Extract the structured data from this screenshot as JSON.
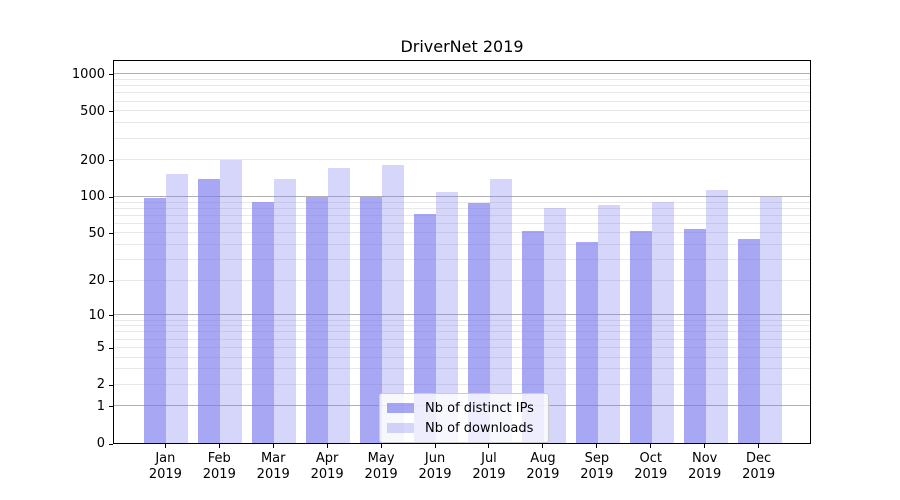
{
  "title": "DriverNet 2019",
  "legend": {
    "items": [
      {
        "label": "Nb of distinct IPs",
        "series": "ips"
      },
      {
        "label": "Nb of downloads",
        "series": "downloads"
      }
    ],
    "position": "lower center"
  },
  "colors": {
    "ips": "rgba(120,120,238,0.65)",
    "downloads": "rgba(120,120,238,0.30)",
    "grid_major": "#b0b0b0",
    "grid_minor": "#e8e8e8",
    "spine": "#000000",
    "text": "#000000",
    "legend_border": "#cccccc",
    "legend_bg": "rgba(255,255,255,0.8)"
  },
  "chart_data": {
    "type": "bar",
    "title": "DriverNet 2019",
    "categories": [
      {
        "month": "Jan",
        "year": "2019"
      },
      {
        "month": "Feb",
        "year": "2019"
      },
      {
        "month": "Mar",
        "year": "2019"
      },
      {
        "month": "Apr",
        "year": "2019"
      },
      {
        "month": "May",
        "year": "2019"
      },
      {
        "month": "Jun",
        "year": "2019"
      },
      {
        "month": "Jul",
        "year": "2019"
      },
      {
        "month": "Aug",
        "year": "2019"
      },
      {
        "month": "Sep",
        "year": "2019"
      },
      {
        "month": "Oct",
        "year": "2019"
      },
      {
        "month": "Nov",
        "year": "2019"
      },
      {
        "month": "Dec",
        "year": "2019"
      }
    ],
    "series": [
      {
        "name": "Nb of distinct IPs",
        "key": "ips",
        "values": [
          97,
          140,
          90,
          100,
          100,
          72,
          89,
          52,
          42,
          52,
          54,
          45
        ]
      },
      {
        "name": "Nb of downloads",
        "key": "downloads",
        "values": [
          152,
          200,
          140,
          170,
          180,
          108,
          139,
          80,
          85,
          91,
          113,
          100
        ]
      }
    ],
    "xlabel": "",
    "ylabel": "",
    "yscale": "symlog (position = log10(1 + y))",
    "y_ticks": [
      0,
      1,
      2,
      5,
      10,
      20,
      50,
      100,
      200,
      500,
      1000
    ],
    "y_major_gridlines": [
      1,
      10,
      100,
      1000
    ],
    "ylim": [
      0,
      1320
    ],
    "grid": true,
    "legend_position": "lower center"
  }
}
